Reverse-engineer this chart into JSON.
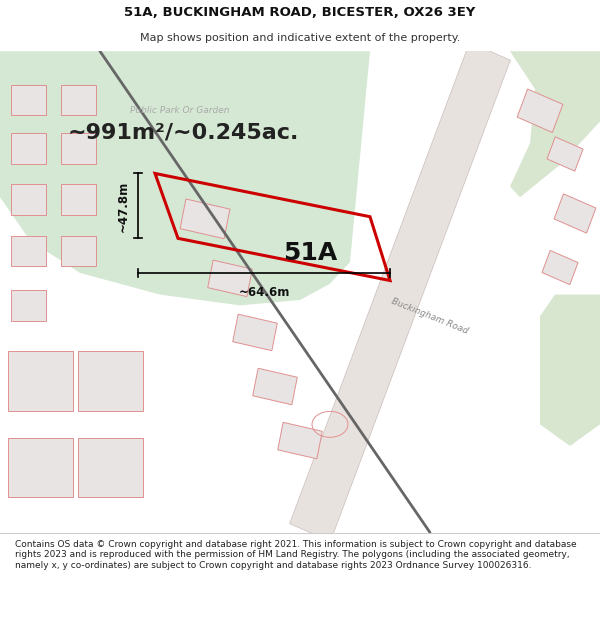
{
  "title": "51A, BUCKINGHAM ROAD, BICESTER, OX26 3EY",
  "subtitle": "Map shows position and indicative extent of the property.",
  "area_text": "~991m²/~0.245ac.",
  "label_51A": "51A",
  "dim_height": "~47.8m",
  "dim_width": "~64.6m",
  "footer_text": "Contains OS data © Crown copyright and database right 2021. This information is subject to Crown copyright and database rights 2023 and is reproduced with the permission of HM Land Registry. The polygons (including the associated geometry, namely x, y co-ordinates) are subject to Crown copyright and database rights 2023 Ordnance Survey 100026316.",
  "map_bg": "#f7f4f2",
  "park_color": "#d5e8d4",
  "park_color2": "#d8e6d0",
  "road_band_color": "#e8e2de",
  "road_center_color": "#ddd8d4",
  "railway_color": "#666666",
  "plot_color": "#cc0000",
  "building_fill": "#e8e4e4",
  "building_edge": "#e09090",
  "title_color": "#111111",
  "subtitle_color": "#333333",
  "dim_color": "#111111",
  "area_text_color": "#222222",
  "footer_color": "#222222",
  "road_text_color": "#888888",
  "park_text_color": "#aaaaaa",
  "white": "#ffffff",
  "separator_color": "#cccccc"
}
